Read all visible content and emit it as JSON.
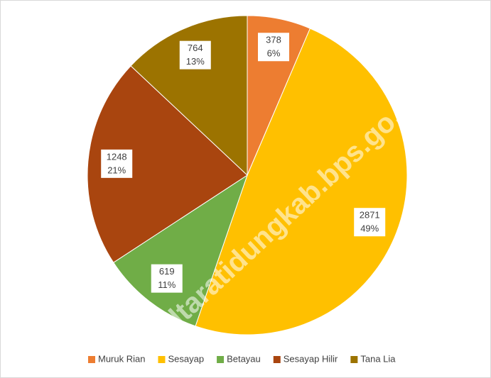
{
  "chart_data": {
    "type": "pie",
    "categories": [
      "Muruk Rian",
      "Sesayap",
      "Betayau",
      "Sesayap Hilir",
      "Tana Lia"
    ],
    "values": [
      378,
      2871,
      619,
      1248,
      764
    ],
    "percent_labels": [
      "6%",
      "49%",
      "11%",
      "21%",
      "13%"
    ],
    "colors": [
      "#ED7D31",
      "#FFC000",
      "#70AD47",
      "#A9450F",
      "#9C7300"
    ],
    "legend": "bottom",
    "watermark": "kaltaratidungkab.bps.go.id"
  }
}
